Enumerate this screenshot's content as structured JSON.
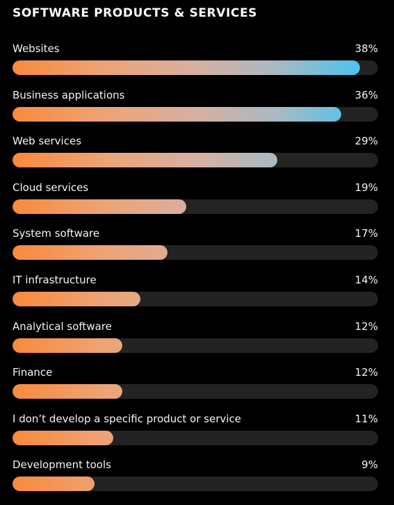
{
  "chart_data": {
    "type": "bar",
    "orientation": "horizontal",
    "title": "SOFTWARE PRODUCTS & SERVICES",
    "categories": [
      "Websites",
      "Business applications",
      "Web services",
      "Cloud services",
      "System software",
      "IT infrastructure",
      "Analytical software",
      "Finance",
      "I don’t develop a specific product or service",
      "Development tools"
    ],
    "values": [
      38,
      36,
      29,
      19,
      17,
      14,
      12,
      12,
      11,
      9
    ],
    "value_labels": [
      "38%",
      "36%",
      "29%",
      "19%",
      "17%",
      "14%",
      "12%",
      "12%",
      "11%",
      "9%"
    ],
    "unit": "%",
    "xlim": [
      0,
      40
    ],
    "grid": false,
    "colors": {
      "background": "#000000",
      "track": "#232323",
      "gradient_start": "#f98a3c",
      "gradient_end": "#4cc3ee",
      "text": "#ffffff"
    }
  }
}
